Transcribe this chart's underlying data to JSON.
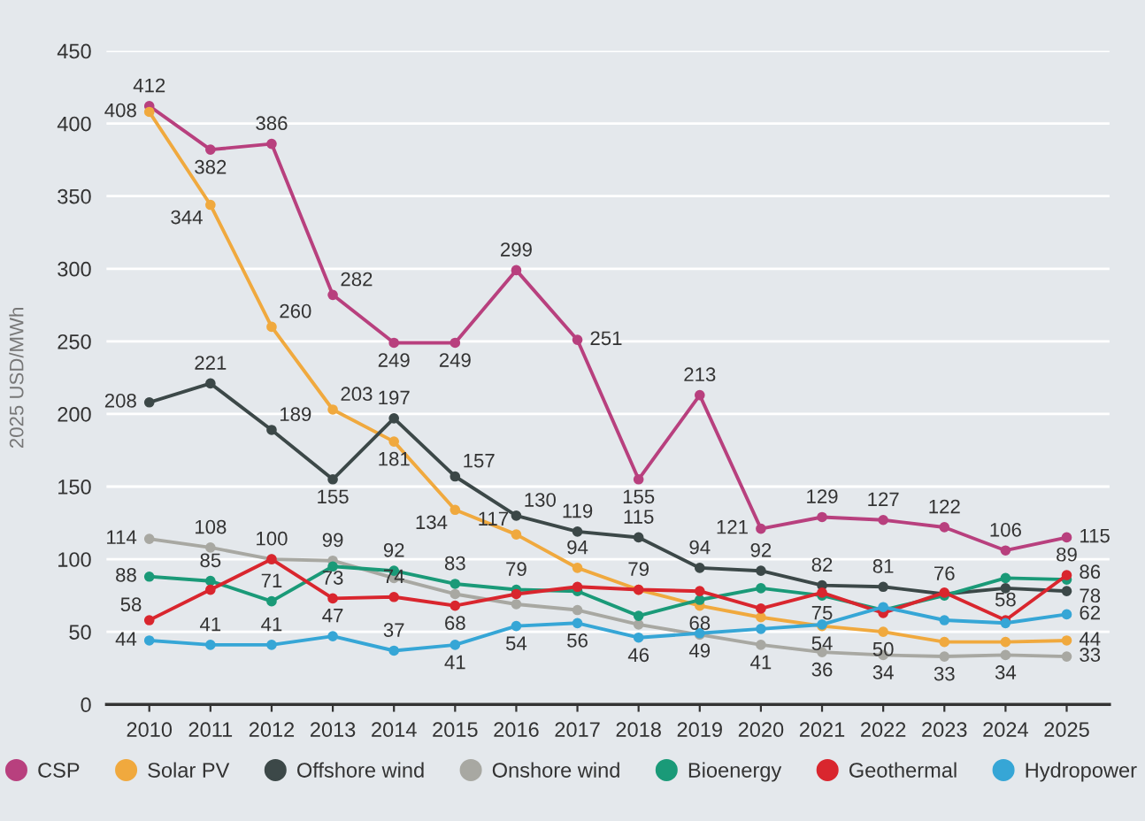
{
  "chart_data": {
    "type": "line",
    "ylabel": "2025 USD/MWh",
    "categories": [
      "2010",
      "2011",
      "2012",
      "2013",
      "2014",
      "2015",
      "2016",
      "2017",
      "2018",
      "2019",
      "2020",
      "2021",
      "2022",
      "2023",
      "2024",
      "2025"
    ],
    "series": [
      {
        "name": "CSP",
        "color": "#b8407e",
        "values": [
          412,
          382,
          386,
          282,
          249,
          249,
          299,
          251,
          155,
          213,
          121,
          129,
          127,
          122,
          106,
          115
        ],
        "value_labels": [
          "412",
          "382",
          "386",
          "282",
          "249",
          "249",
          "299",
          "251",
          "155",
          "213",
          "121",
          "129",
          "127",
          "122",
          "106",
          "115"
        ]
      },
      {
        "name": "Solar PV",
        "color": "#f0a93e",
        "values": [
          408,
          344,
          260,
          203,
          181,
          134,
          117,
          94,
          79,
          68,
          60,
          54,
          50,
          43,
          43,
          44
        ],
        "value_labels": [
          "408",
          "344",
          "260",
          "203",
          "181",
          "134",
          "117",
          "94",
          "79",
          "68",
          null,
          "54",
          "50",
          null,
          null,
          "44"
        ]
      },
      {
        "name": "Offshore wind",
        "color": "#3c4848",
        "values": [
          208,
          221,
          189,
          155,
          197,
          157,
          130,
          119,
          115,
          94,
          92,
          82,
          81,
          76,
          80,
          78
        ],
        "value_labels": [
          "208",
          "221",
          "189",
          "155",
          "197",
          "157",
          "130",
          "119",
          "115",
          "94",
          "92",
          "82",
          "81",
          "76",
          null,
          "78"
        ]
      },
      {
        "name": "Onshore wind",
        "color": "#a8a8a2",
        "values": [
          114,
          108,
          100,
          99,
          87,
          76,
          69,
          65,
          55,
          48,
          41,
          36,
          34,
          33,
          34,
          33
        ],
        "value_labels": [
          "114",
          "108",
          null,
          "99",
          null,
          null,
          null,
          null,
          null,
          null,
          "41",
          "36",
          "34",
          "33",
          "34",
          "33"
        ]
      },
      {
        "name": "Bioenergy",
        "color": "#1a9a78",
        "values": [
          88,
          85,
          71,
          95,
          92,
          83,
          79,
          78,
          61,
          72,
          80,
          75,
          65,
          75,
          87,
          86
        ],
        "value_labels": [
          "88",
          "85",
          "71",
          null,
          "92",
          "83",
          "79",
          null,
          null,
          null,
          null,
          "75",
          null,
          null,
          null,
          "86"
        ]
      },
      {
        "name": "Geothermal",
        "color": "#d9262e",
        "values": [
          58,
          79,
          100,
          73,
          74,
          68,
          76,
          81,
          79,
          78,
          66,
          77,
          63,
          77,
          58,
          89
        ],
        "value_labels": [
          "58",
          null,
          "100",
          "73",
          "74",
          "68",
          null,
          null,
          null,
          null,
          null,
          null,
          null,
          null,
          "58",
          "89"
        ]
      },
      {
        "name": "Hydropower",
        "color": "#36a6d6",
        "values": [
          44,
          41,
          41,
          47,
          37,
          41,
          54,
          56,
          46,
          49,
          52,
          55,
          67,
          58,
          56,
          62
        ],
        "value_labels": [
          "44",
          "41",
          "41",
          "47",
          "37",
          "41",
          "54",
          "56",
          "46",
          "49",
          null,
          null,
          null,
          null,
          null,
          "62"
        ]
      }
    ],
    "ylim": [
      0,
      450
    ],
    "yticks": [
      0,
      50,
      100,
      150,
      200,
      250,
      300,
      350,
      400,
      450
    ],
    "grid": "y",
    "legend": "bottom",
    "marker": "circle",
    "line_style": "solid"
  }
}
